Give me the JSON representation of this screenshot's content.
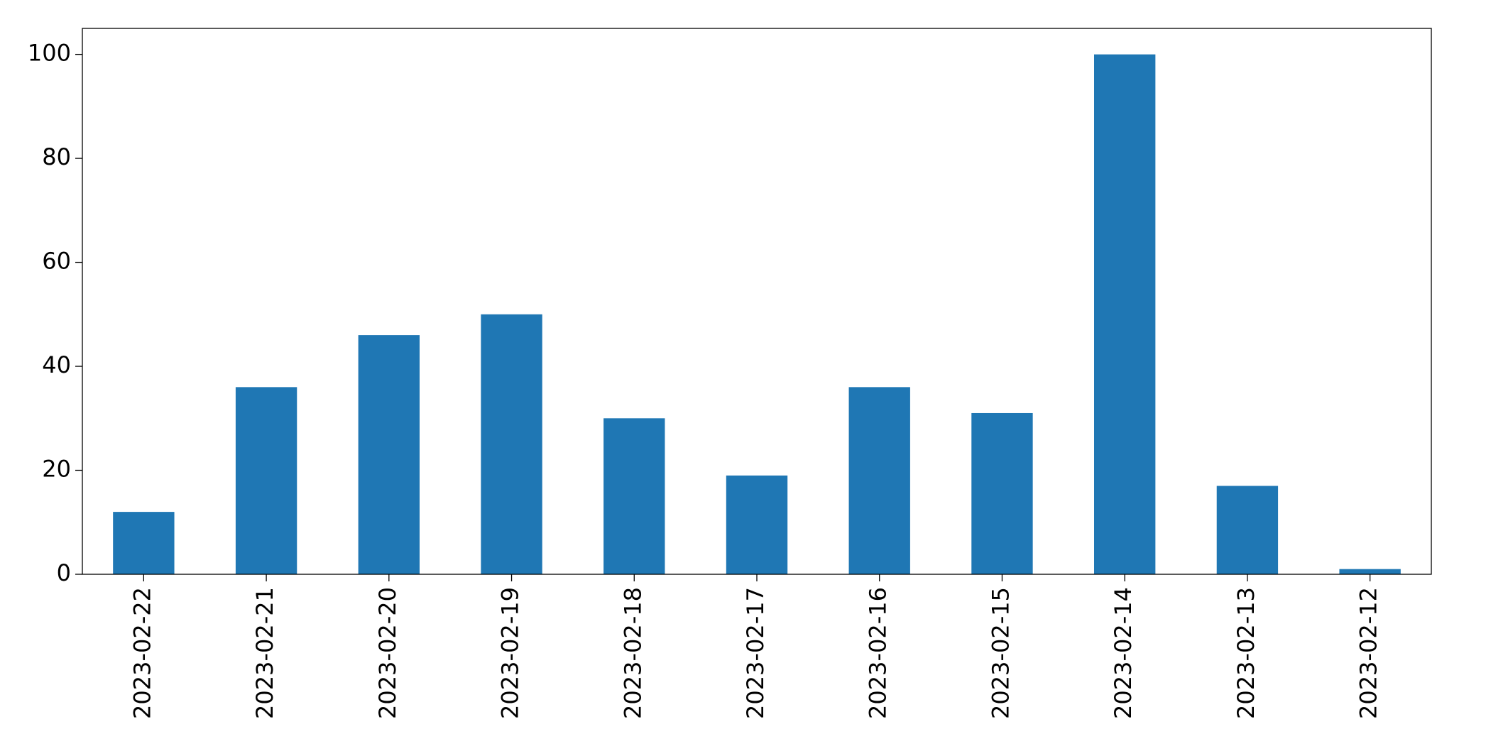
{
  "chart_data": {
    "type": "bar",
    "categories": [
      "2023-02-22",
      "2023-02-21",
      "2023-02-20",
      "2023-02-19",
      "2023-02-18",
      "2023-02-17",
      "2023-02-16",
      "2023-02-15",
      "2023-02-14",
      "2023-02-13",
      "2023-02-12"
    ],
    "values": [
      12,
      36,
      46,
      50,
      30,
      19,
      36,
      31,
      100,
      17,
      1
    ],
    "color": "#1f77b4",
    "ylim": [
      0,
      105
    ],
    "yticks": [
      0,
      20,
      40,
      60,
      80,
      100
    ],
    "grid": false
  }
}
